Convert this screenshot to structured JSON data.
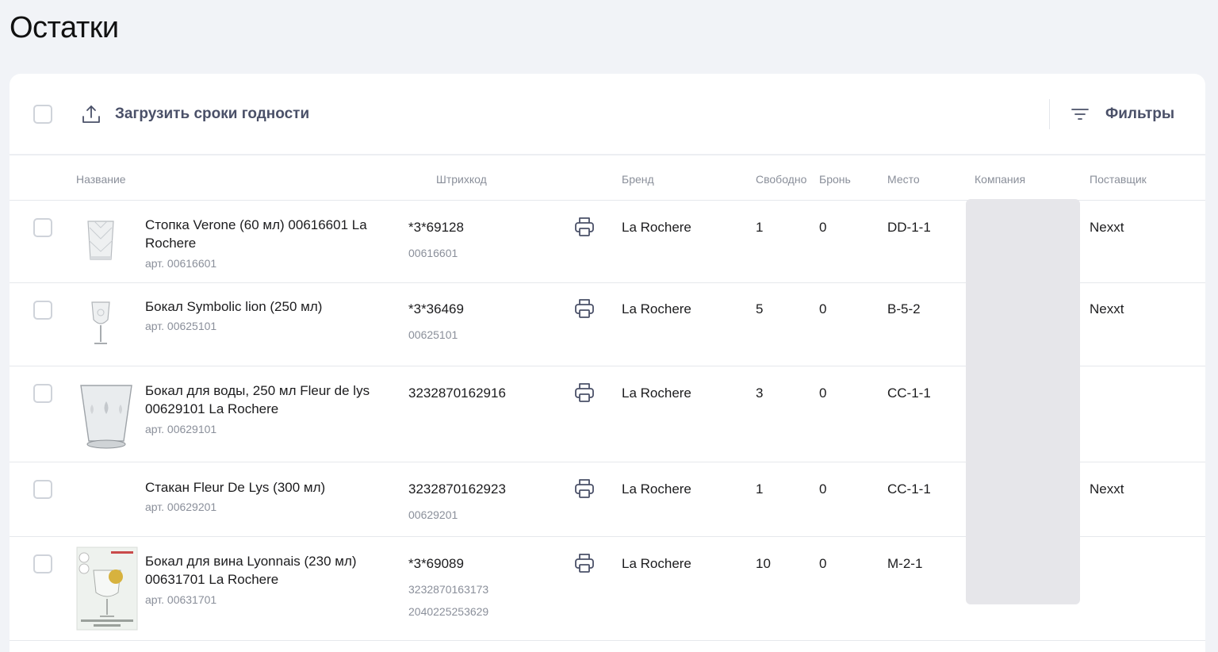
{
  "page": {
    "title": "Остатки"
  },
  "toolbar": {
    "upload_label": "Загрузить сроки годности",
    "filters_label": "Фильтры"
  },
  "columns": {
    "name": "Название",
    "barcode": "Штрихкод",
    "brand": "Бренд",
    "free": "Свободно",
    "reserve": "Бронь",
    "place": "Место",
    "company": "Компания",
    "supplier": "Поставщик"
  },
  "rows": [
    {
      "name": "Стопка Verone (60 мл) 00616601 La Rochere",
      "article": "арт. 00616601",
      "barcode": "*3*69128",
      "barcode_extra": [
        "00616601"
      ],
      "brand": "La Rochere",
      "free": "1",
      "reserve": "0",
      "place": "DD-1-1",
      "supplier": "Nexxt"
    },
    {
      "name": "Бокал Symbolic lion (250 мл)",
      "article": "арт. 00625101",
      "barcode": "*3*36469",
      "barcode_extra": [
        "00625101"
      ],
      "brand": "La Rochere",
      "free": "5",
      "reserve": "0",
      "place": "B-5-2",
      "supplier": "Nexxt"
    },
    {
      "name": "Бокал для воды, 250 мл Fleur de lys 00629101 La Rochere",
      "article": "арт. 00629101",
      "barcode": "3232870162916",
      "barcode_extra": [],
      "brand": "La Rochere",
      "free": "3",
      "reserve": "0",
      "place": "CC-1-1",
      "supplier": ""
    },
    {
      "name": "Стакан Fleur De Lys (300 мл)",
      "article": "арт. 00629201",
      "barcode": "3232870162923",
      "barcode_extra": [
        "00629201"
      ],
      "brand": "La Rochere",
      "free": "1",
      "reserve": "0",
      "place": "CC-1-1",
      "supplier": "Nexxt"
    },
    {
      "name": "Бокал для вина Lyonnais (230 мл) 00631701 La Rochere",
      "article": "арт. 00631701",
      "barcode": "*3*69089",
      "barcode_extra": [
        "3232870163173",
        "2040225253629"
      ],
      "brand": "La Rochere",
      "free": "10",
      "reserve": "0",
      "place": "M-2-1",
      "supplier": ""
    }
  ],
  "icons": {
    "upload": "upload-icon",
    "filter": "filter-icon",
    "print": "printer-icon",
    "checkbox": "checkbox"
  },
  "colors": {
    "background": "#f1f3f7",
    "card": "#ffffff",
    "toolbar_text": "#4a5068",
    "muted_text": "#8a8f9a",
    "company_mask": "#e6e6ea"
  }
}
